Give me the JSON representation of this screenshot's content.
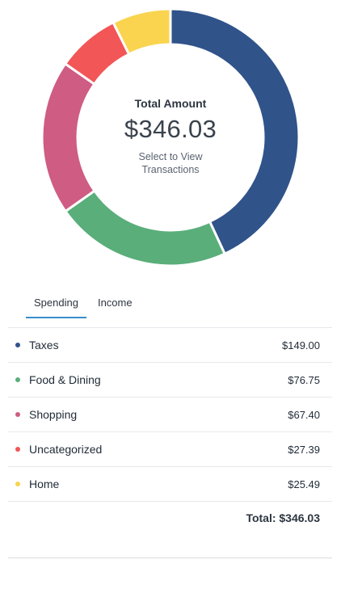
{
  "summary": {
    "total_label": "Total Amount",
    "total_amount": "$346.03",
    "hint_line1": "Select to View",
    "hint_line2": "Transactions"
  },
  "tabs": [
    {
      "label": "Spending",
      "active": true
    },
    {
      "label": "Income",
      "active": false
    }
  ],
  "categories": [
    {
      "name": "Taxes",
      "amount": "$149.00",
      "color": "#30538a"
    },
    {
      "name": "Food & Dining",
      "amount": "$76.75",
      "color": "#5aae7a"
    },
    {
      "name": "Shopping",
      "amount": "$67.40",
      "color": "#cf5c82"
    },
    {
      "name": "Uncategorized",
      "amount": "$27.39",
      "color": "#f25656"
    },
    {
      "name": "Home",
      "amount": "$25.49",
      "color": "#fad44e"
    }
  ],
  "total_line": "Total: $346.03",
  "chart_data": {
    "type": "pie",
    "categories": [
      "Taxes",
      "Food & Dining",
      "Shopping",
      "Uncategorized",
      "Home"
    ],
    "values": [
      149.0,
      76.75,
      67.4,
      27.39,
      25.49
    ],
    "colors": [
      "#30538a",
      "#5aae7a",
      "#cf5c82",
      "#f25656",
      "#fad44e"
    ],
    "donut": true
  }
}
